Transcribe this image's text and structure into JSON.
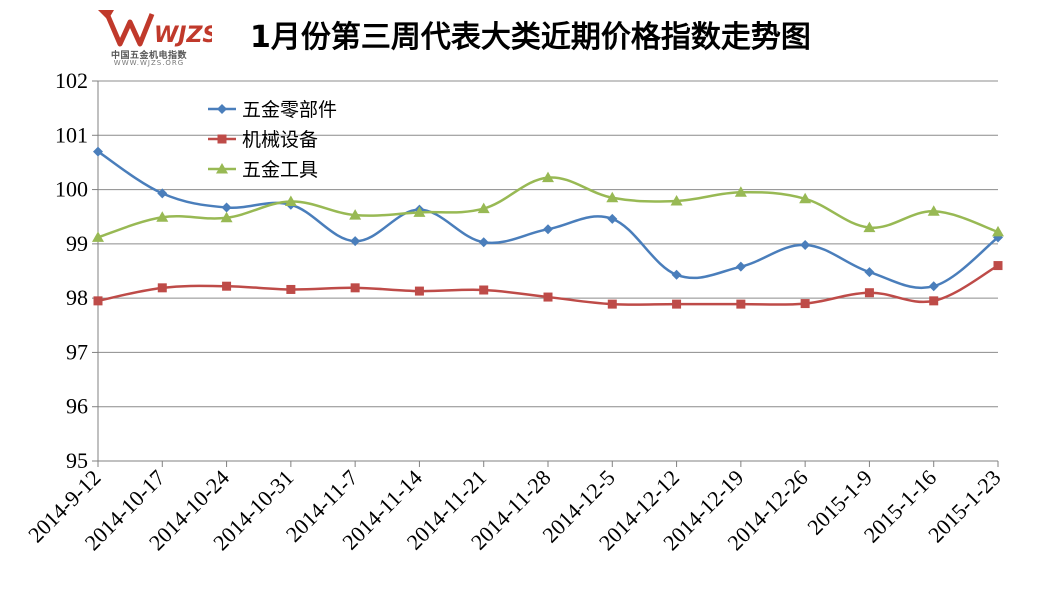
{
  "logo": {
    "mark": "WJZS",
    "cn": "中国五金机电指数",
    "url": "WWW.WJZS.ORG"
  },
  "chart_data": {
    "type": "line",
    "title": "1月份第三周代表大类近期价格指数走势图",
    "xlabel": "",
    "ylabel": "",
    "ylim": [
      95,
      102
    ],
    "yticks": [
      95,
      96,
      97,
      98,
      99,
      100,
      101,
      102
    ],
    "grid": true,
    "legend": "top-left",
    "categories": [
      "2014-9-12",
      "2014-10-17",
      "2014-10-24",
      "2014-10-31",
      "2014-11-7",
      "2014-11-14",
      "2014-11-21",
      "2014-11-28",
      "2014-12-5",
      "2014-12-12",
      "2014-12-19",
      "2014-12-26",
      "2015-1-9",
      "2015-1-16",
      "2015-1-23"
    ],
    "series": [
      {
        "name": "五金零部件",
        "color": "#4a7ebb",
        "marker": "diamond",
        "values": [
          100.7,
          99.93,
          99.67,
          99.72,
          99.05,
          99.63,
          99.03,
          99.27,
          99.46,
          98.43,
          98.58,
          98.98,
          98.48,
          98.22,
          99.12
        ]
      },
      {
        "name": "机械设备",
        "color": "#be4b48",
        "marker": "square",
        "values": [
          97.95,
          98.19,
          98.22,
          98.16,
          98.19,
          98.13,
          98.15,
          98.02,
          97.89,
          97.89,
          97.89,
          97.9,
          98.1,
          97.95,
          98.6
        ]
      },
      {
        "name": "五金工具",
        "color": "#98b954",
        "marker": "triangle",
        "values": [
          99.12,
          99.49,
          99.48,
          99.78,
          99.53,
          99.58,
          99.65,
          100.22,
          99.85,
          99.79,
          99.95,
          99.83,
          99.3,
          99.6,
          99.22
        ]
      }
    ]
  }
}
